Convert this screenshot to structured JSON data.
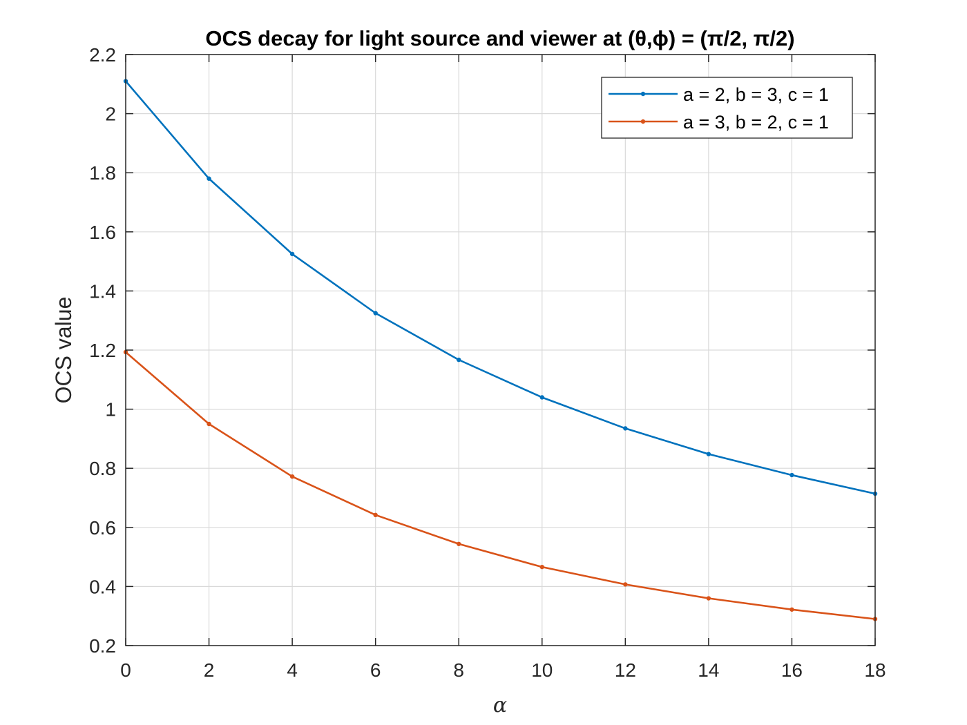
{
  "chart_data": {
    "type": "line",
    "title": "OCS decay for light source and viewer at (θ,ϕ) = (π/2, π/2)",
    "xlabel": "α",
    "ylabel": "OCS value",
    "xlim": [
      0,
      18
    ],
    "ylim": [
      0.2,
      2.2
    ],
    "xticks": [
      "0",
      "2",
      "4",
      "6",
      "8",
      "10",
      "12",
      "14",
      "16",
      "18"
    ],
    "yticks": [
      "0.2",
      "0.4",
      "0.6",
      "0.8",
      "1",
      "1.2",
      "1.4",
      "1.6",
      "1.8",
      "2",
      "2.2"
    ],
    "grid": true,
    "legend_position": "top-right",
    "x": [
      0,
      2,
      4,
      6,
      8,
      10,
      12,
      14,
      16,
      18
    ],
    "series": [
      {
        "name": "a = 2, b = 3, c = 1",
        "color": "#0072BD",
        "values": [
          2.11,
          1.78,
          1.525,
          1.325,
          1.167,
          1.04,
          0.935,
          0.848,
          0.777,
          0.714
        ]
      },
      {
        "name": "a = 3, b = 2, c = 1",
        "color": "#D95319",
        "values": [
          1.193,
          0.95,
          0.772,
          0.642,
          0.544,
          0.466,
          0.407,
          0.36,
          0.322,
          0.29
        ]
      }
    ]
  }
}
